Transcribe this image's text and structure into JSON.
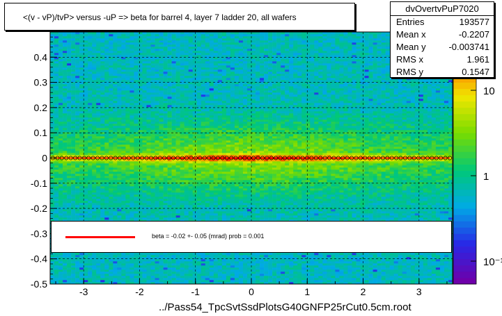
{
  "chart_data": {
    "type": "heatmap",
    "title": "<(v - vP)/tvP> versus  -uP => beta for barrel 4, layer 7 ladder 20, all wafers",
    "xlabel": "../Pass54_TpcSvtSsdPlotsG40GNFP25rCut0.5cm.root",
    "ylabel": "",
    "xlim": [
      -3.6,
      3.6
    ],
    "ylim": [
      -0.5,
      0.5
    ],
    "x_ticks": [
      "-3",
      "-2",
      "-1",
      "0",
      "1",
      "2",
      "3"
    ],
    "y_ticks": [
      "-0.5",
      "-0.4",
      "-0.3",
      "-0.2",
      "-0.1",
      "0",
      "0.1",
      "0.2",
      "0.3",
      "0.4"
    ],
    "grid": true,
    "colorbar": {
      "scale": "log",
      "labels": [
        "10",
        "1",
        "10⁻¹"
      ],
      "label_values": [
        10,
        1,
        0.1
      ]
    },
    "profile_series": {
      "name": "profile",
      "x_range": [
        -3.55,
        3.55
      ],
      "points": 90,
      "y_value": 0.0
    },
    "fit": {
      "text": "beta =   -0.02 +-  0.05 (mrad) prob = 0.001",
      "color": "#ff0000"
    },
    "stats": {
      "name": "dvOvertvPuP7020",
      "rows": [
        {
          "label": "Entries",
          "value": "193577"
        },
        {
          "label": "Mean x",
          "value": "-0.2207"
        },
        {
          "label": "Mean y",
          "value": "-0.003741"
        },
        {
          "label": "RMS x",
          "value": "1.961"
        },
        {
          "label": "RMS y",
          "value": "0.1547"
        }
      ]
    }
  }
}
